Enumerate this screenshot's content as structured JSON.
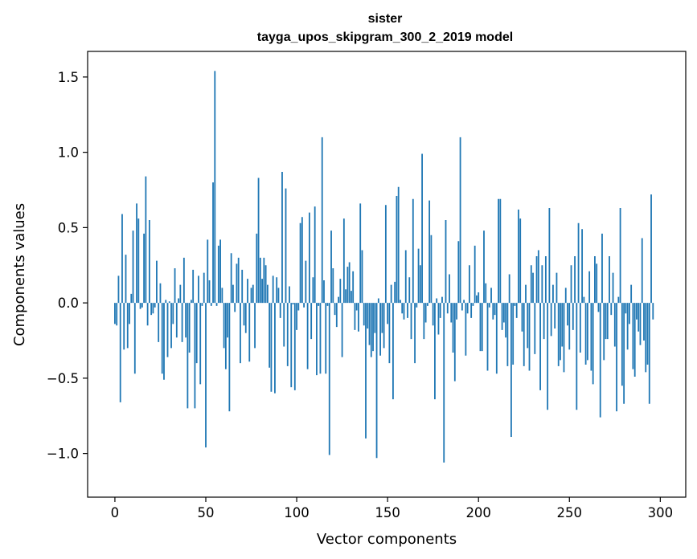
{
  "chart_data": {
    "type": "bar",
    "title": "sister",
    "subtitle": "tayga_upos_skipgram_300_2_2019 model",
    "xlabel": "Vector components",
    "ylabel": "Components values",
    "xlim": [
      -15,
      314
    ],
    "ylim": [
      -1.29,
      1.67
    ],
    "xticks": [
      0,
      50,
      100,
      150,
      200,
      250,
      300
    ],
    "xtick_labels": [
      "0",
      "50",
      "100",
      "150",
      "200",
      "250",
      "300"
    ],
    "yticks": [
      -1.0,
      -0.5,
      0.0,
      0.5,
      1.0,
      1.5
    ],
    "ytick_labels": [
      "−1.0",
      "−0.5",
      "0.0",
      "0.5",
      "1.0",
      "1.5"
    ],
    "grid": false,
    "color": "#1f77b4",
    "values": [
      -0.14,
      -0.15,
      0.18,
      -0.66,
      0.59,
      -0.31,
      0.32,
      -0.3,
      -0.14,
      0.06,
      0.48,
      -0.47,
      0.66,
      0.56,
      -0.04,
      -0.03,
      0.46,
      0.84,
      -0.15,
      0.55,
      -0.08,
      -0.07,
      -0.03,
      0.28,
      -0.26,
      0.13,
      -0.47,
      -0.51,
      0.02,
      -0.36,
      0.01,
      -0.3,
      -0.14,
      0.23,
      -0.23,
      0.03,
      0.12,
      -0.26,
      0.3,
      -0.23,
      -0.7,
      -0.33,
      0.02,
      0.22,
      -0.7,
      -0.4,
      0.18,
      -0.54,
      -0.02,
      0.2,
      -0.96,
      0.42,
      0.15,
      -0.02,
      0.8,
      1.54,
      -0.02,
      0.38,
      0.42,
      0.1,
      -0.3,
      -0.44,
      -0.23,
      -0.72,
      0.33,
      0.12,
      -0.06,
      0.26,
      0.3,
      -0.4,
      0.22,
      -0.15,
      -0.2,
      0.16,
      -0.39,
      0.1,
      0.12,
      -0.3,
      0.46,
      0.83,
      0.3,
      0.16,
      0.3,
      0.25,
      0.12,
      -0.43,
      -0.59,
      0.18,
      -0.6,
      0.17,
      0.1,
      -0.1,
      0.87,
      -0.29,
      0.76,
      -0.42,
      0.11,
      -0.56,
      -0.01,
      -0.58,
      -0.18,
      -0.05,
      0.53,
      0.57,
      -0.03,
      0.28,
      -0.44,
      0.6,
      -0.24,
      0.17,
      0.64,
      -0.48,
      -0.02,
      -0.47,
      1.1,
      0.15,
      -0.47,
      -0.02,
      -1.01,
      0.48,
      0.23,
      -0.08,
      -0.16,
      0.04,
      0.16,
      -0.36,
      0.56,
      0.09,
      0.24,
      0.27,
      0.08,
      0.21,
      -0.18,
      -0.05,
      -0.19,
      0.66,
      0.35,
      -0.15,
      -0.9,
      -0.17,
      -0.28,
      -0.36,
      -0.32,
      -0.2,
      -1.03,
      0.03,
      -0.35,
      -0.2,
      -0.3,
      0.65,
      -0.14,
      -0.4,
      0.12,
      -0.64,
      0.14,
      0.71,
      0.77,
      0.02,
      -0.07,
      -0.11,
      0.35,
      -0.1,
      0.17,
      -0.24,
      0.69,
      -0.4,
      -0.03,
      0.36,
      0.25,
      0.99,
      -0.24,
      -0.13,
      -0.02,
      0.68,
      0.45,
      -0.15,
      -0.64,
      0.03,
      -0.21,
      -0.1,
      0.04,
      -1.06,
      0.55,
      -0.07,
      0.19,
      -0.13,
      -0.33,
      -0.52,
      -0.11,
      0.41,
      1.1,
      -0.05,
      0.02,
      -0.35,
      -0.07,
      0.25,
      -0.1,
      -0.02,
      0.38,
      0.05,
      0.07,
      -0.32,
      -0.32,
      0.48,
      0.13,
      -0.45,
      -0.03,
      0.1,
      -0.11,
      -0.08,
      -0.47,
      0.69,
      0.69,
      -0.18,
      -0.13,
      -0.23,
      -0.42,
      0.19,
      -0.89,
      -0.41,
      -0.02,
      -0.1,
      0.62,
      0.56,
      -0.19,
      -0.42,
      0.12,
      -0.3,
      -0.45,
      0.25,
      0.2,
      -0.34,
      0.31,
      0.35,
      -0.58,
      0.25,
      -0.24,
      0.31,
      -0.71,
      0.63,
      -0.22,
      0.12,
      -0.17,
      0.2,
      -0.42,
      -0.38,
      -0.29,
      -0.46,
      0.1,
      -0.15,
      -0.31,
      0.25,
      -0.18,
      0.31,
      -0.71,
      0.53,
      -0.33,
      0.49,
      0.04,
      -0.41,
      -0.38,
      0.21,
      -0.45,
      -0.54,
      0.31,
      0.26,
      -0.06,
      -0.76,
      0.46,
      -0.38,
      -0.24,
      -0.24,
      0.31,
      -0.08,
      0.2,
      -0.29,
      -0.72,
      0.04,
      0.63,
      -0.55,
      -0.67,
      -0.07,
      -0.31,
      -0.14,
      0.12,
      -0.44,
      -0.49,
      -0.11,
      -0.19,
      -0.28,
      0.43,
      -0.25,
      -0.46,
      -0.41,
      -0.67,
      0.72,
      -0.11
    ]
  }
}
